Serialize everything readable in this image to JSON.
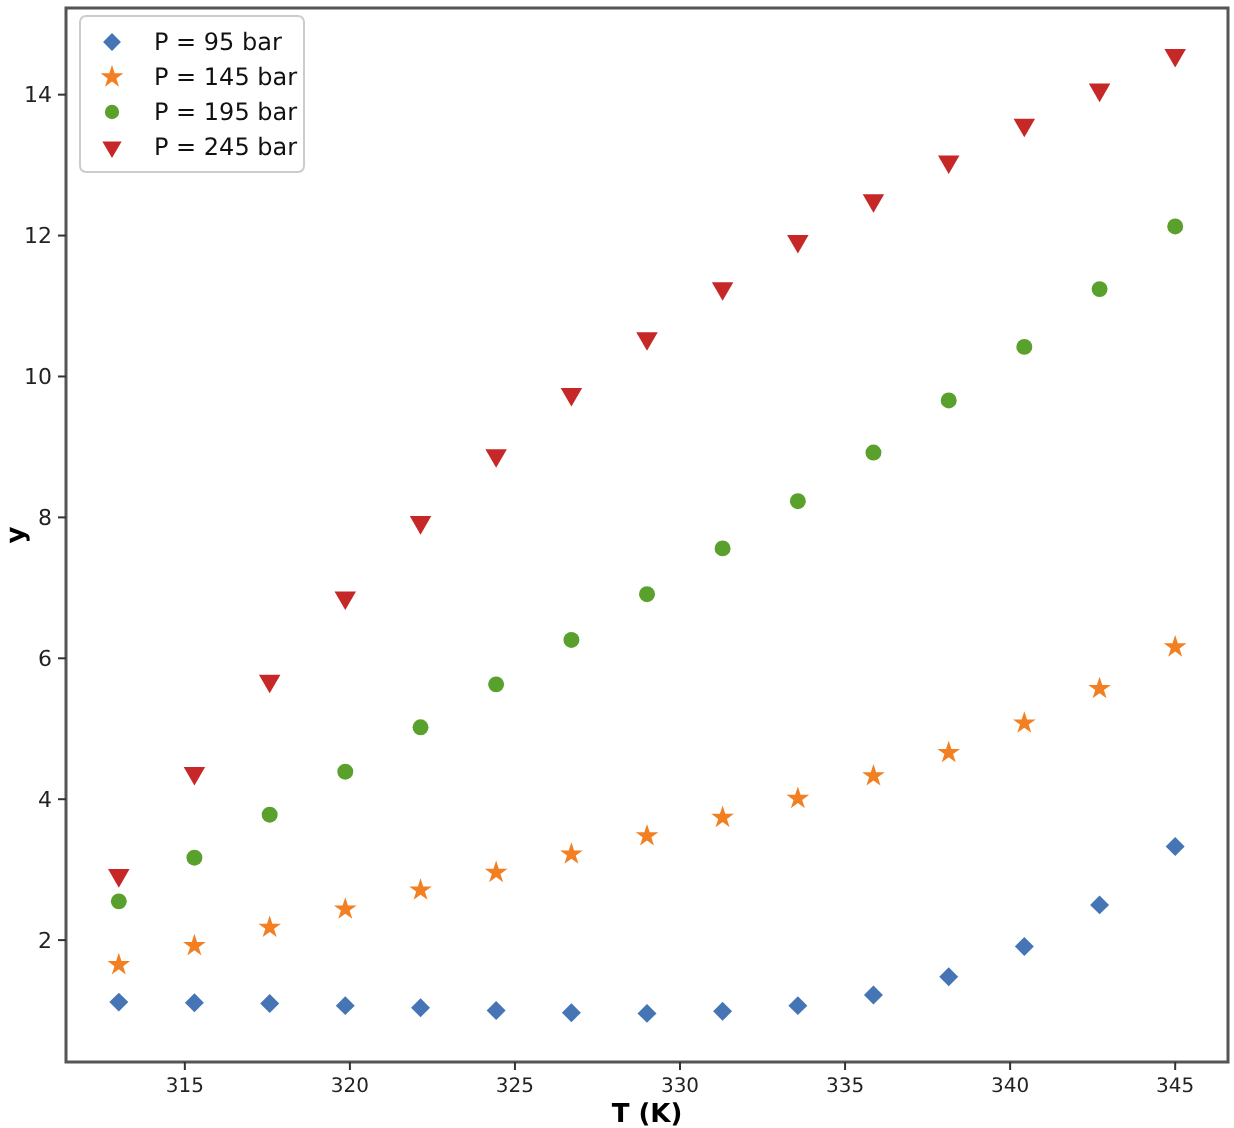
{
  "chart_data": {
    "type": "scatter",
    "xlabel": "T (K)",
    "ylabel": "y",
    "x": [
      313,
      315.29,
      317.57,
      319.86,
      322.14,
      324.43,
      326.71,
      329,
      331.29,
      333.57,
      335.86,
      338.14,
      340.43,
      342.71,
      345
    ],
    "xlim": [
      311.4,
      346.6
    ],
    "xticks": [
      315,
      320,
      325,
      330,
      335,
      340,
      345
    ],
    "ylim": [
      0.27,
      15.23
    ],
    "yticks": [
      2,
      4,
      6,
      8,
      10,
      12,
      14
    ],
    "grid": false,
    "legend": "top left",
    "series": [
      {
        "name": "P = 95 bar",
        "color": "#4575b4",
        "marker": "diamond",
        "values": [
          1.12,
          1.11,
          1.1,
          1.07,
          1.04,
          1.0,
          0.97,
          0.96,
          0.99,
          1.07,
          1.22,
          1.48,
          1.91,
          2.5,
          3.33
        ]
      },
      {
        "name": "P = 145 bar",
        "color": "#f28022",
        "marker": "star",
        "values": [
          1.65,
          1.92,
          2.18,
          2.44,
          2.71,
          2.96,
          3.22,
          3.48,
          3.74,
          4.01,
          4.33,
          4.66,
          5.08,
          5.57,
          6.16
        ]
      },
      {
        "name": "P = 195 bar",
        "color": "#5aa02c",
        "marker": "circle",
        "values": [
          2.55,
          3.17,
          3.78,
          4.39,
          5.02,
          5.63,
          6.26,
          6.91,
          7.56,
          8.23,
          8.92,
          9.66,
          10.42,
          11.24,
          12.13
        ]
      },
      {
        "name": "P = 245 bar",
        "color": "#c62828",
        "marker": "triangle",
        "values": [
          2.92,
          4.37,
          5.68,
          6.86,
          7.93,
          8.88,
          9.75,
          10.54,
          11.25,
          11.92,
          12.5,
          13.05,
          13.57,
          14.07,
          14.56
        ]
      }
    ]
  }
}
